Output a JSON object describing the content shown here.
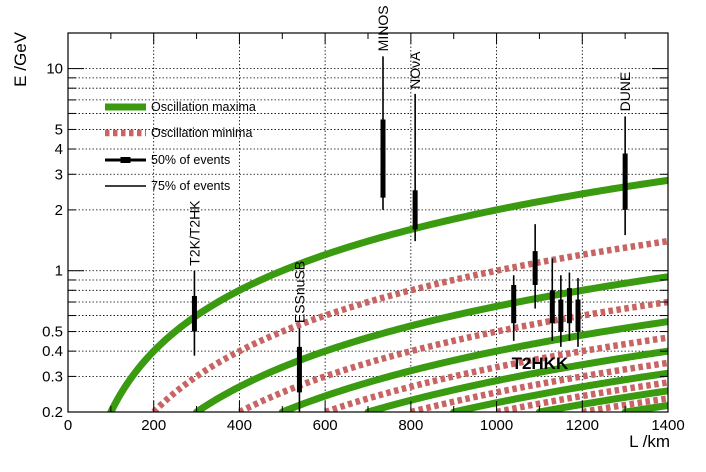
{
  "chart_data": {
    "type": "line",
    "xlabel": "L /km",
    "ylabel": "E /GeV",
    "xlim": [
      0,
      1400
    ],
    "ylim": [
      0.2,
      15
    ],
    "yscale": "log",
    "grid": true,
    "colors": {
      "maxima": "#3a9a10",
      "minima": "#c86464",
      "events": "#000000"
    },
    "x_ticks": [
      {
        "value": 0,
        "label": "0"
      },
      {
        "value": 200,
        "label": "200"
      },
      {
        "value": 400,
        "label": "400"
      },
      {
        "value": 600,
        "label": "600"
      },
      {
        "value": 800,
        "label": "800"
      },
      {
        "value": 1000,
        "label": "1000"
      },
      {
        "value": 1200,
        "label": "1200"
      },
      {
        "value": 1400,
        "label": "1400"
      }
    ],
    "y_ticks": [
      {
        "value": 0.2,
        "label": "0.2"
      },
      {
        "value": 0.3,
        "label": "0.3"
      },
      {
        "value": 0.4,
        "label": "0.4"
      },
      {
        "value": 0.5,
        "label": "0.5"
      },
      {
        "value": 1,
        "label": "1"
      },
      {
        "value": 2,
        "label": "2"
      },
      {
        "value": 3,
        "label": "3"
      },
      {
        "value": 4,
        "label": "4"
      },
      {
        "value": 5,
        "label": "5"
      },
      {
        "value": 10,
        "label": "10"
      }
    ],
    "y_grid_values": [
      0.2,
      0.3,
      0.4,
      0.5,
      0.6,
      0.7,
      0.8,
      0.9,
      1,
      2,
      3,
      4,
      5,
      6,
      7,
      8,
      9,
      10
    ],
    "x_minor_step": 100,
    "curves": {
      "maxima": {
        "n_values": [
          1,
          3,
          5,
          7,
          9,
          11,
          13
        ],
        "slope_gev_per_km_n1": 0.002
      },
      "minima": {
        "n_values": [
          2,
          4,
          6,
          8,
          10,
          12,
          14
        ],
        "slope_gev_per_km_n1": 0.002
      }
    },
    "experiments": [
      {
        "name": "T2K/T2HK",
        "L": 295,
        "e50": [
          0.5,
          0.75
        ],
        "e75": [
          0.38,
          1.0
        ],
        "label": "T2K/T2HK"
      },
      {
        "name": "ESSnuSB",
        "L": 540,
        "e50": [
          0.25,
          0.42
        ],
        "e75": [
          0.2,
          0.52
        ],
        "label": "ESSnuSB"
      },
      {
        "name": "MINOS",
        "L": 735,
        "e50": [
          2.3,
          5.6
        ],
        "e75": [
          2.0,
          11.5
        ],
        "label": "MINOS"
      },
      {
        "name": "NOvA",
        "L": 810,
        "e50": [
          1.6,
          2.5
        ],
        "e75": [
          1.4,
          7.5
        ],
        "label": "NOνA"
      },
      {
        "name": "DUNE",
        "L": 1300,
        "e50": [
          2.0,
          3.8
        ],
        "e75": [
          1.5,
          5.8
        ],
        "label": "DUNE"
      },
      {
        "name": "T2HKK-1",
        "L": 1040,
        "e50": [
          0.55,
          0.85
        ],
        "e75": [
          0.45,
          0.95
        ],
        "label": ""
      },
      {
        "name": "T2HKK-2",
        "L": 1090,
        "e50": [
          0.85,
          1.25
        ],
        "e75": [
          0.65,
          1.7
        ],
        "label": ""
      },
      {
        "name": "T2HKK-3",
        "L": 1130,
        "e50": [
          0.55,
          0.8
        ],
        "e75": [
          0.45,
          1.15
        ],
        "label": ""
      },
      {
        "name": "T2HKK-4",
        "L": 1150,
        "e50": [
          0.5,
          0.72
        ],
        "e75": [
          0.42,
          0.95
        ],
        "label": ""
      },
      {
        "name": "T2HKK-5",
        "L": 1170,
        "e50": [
          0.55,
          0.82
        ],
        "e75": [
          0.45,
          0.98
        ],
        "label": ""
      },
      {
        "name": "T2HKK-6",
        "L": 1190,
        "e50": [
          0.5,
          0.72
        ],
        "e75": [
          0.42,
          0.92
        ],
        "label": ""
      }
    ],
    "group_labels": [
      {
        "text": "T2HKK",
        "L": 1035,
        "E": 0.35
      }
    ],
    "legend": {
      "placement": "top-left",
      "entries": [
        {
          "label": "Oscillation maxima",
          "style": "maxima"
        },
        {
          "label": "Oscillation minima",
          "style": "minima"
        },
        {
          "label": "50% of events",
          "style": "e50"
        },
        {
          "label": "75% of events",
          "style": "e75"
        }
      ]
    }
  }
}
